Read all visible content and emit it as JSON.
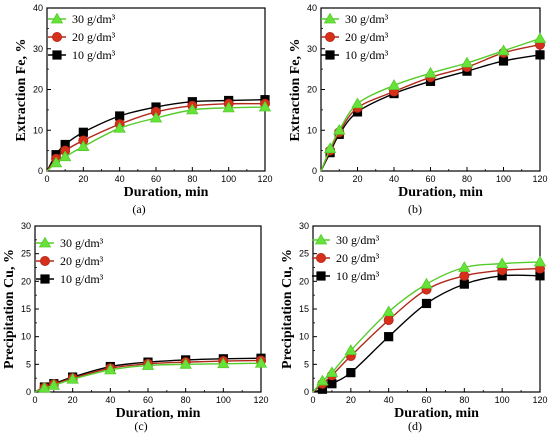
{
  "colors": {
    "green": "#66e23a",
    "red": "#d62f1a",
    "black": "#000000",
    "green_line": "#55cc2a",
    "red_line": "#b2281a"
  },
  "legend_labels": [
    "30 g/dm³",
    "20 g/dm³",
    "10 g/dm³"
  ],
  "chart_data": [
    {
      "type": "line",
      "panel_label": "(a)",
      "xlabel": "Duration,  min",
      "ylabel": "Extraction Fe,  %",
      "xlim": [
        0,
        120
      ],
      "ylim": [
        0,
        40
      ],
      "xticks": [
        0,
        20,
        40,
        60,
        80,
        100,
        120
      ],
      "yticks": [
        0,
        10,
        20,
        30,
        40
      ],
      "legend_position": "top-left",
      "x": [
        0,
        5,
        10,
        20,
        40,
        60,
        80,
        100,
        120
      ],
      "series": [
        {
          "name": "30 g/dm³",
          "marker": "triangle",
          "values": [
            0,
            2,
            3.5,
            6,
            10.5,
            13,
            15,
            15.5,
            15.7
          ]
        },
        {
          "name": "20 g/dm³",
          "marker": "circle",
          "values": [
            0,
            3,
            5,
            7.5,
            11.5,
            14.5,
            16,
            16.5,
            16.5
          ]
        },
        {
          "name": "10 g/dm³",
          "marker": "square",
          "values": [
            0,
            4,
            6.5,
            9.5,
            13.5,
            15.7,
            17,
            17.3,
            17.5
          ]
        }
      ]
    },
    {
      "type": "line",
      "panel_label": "(b)",
      "xlabel": "Duration,  min",
      "ylabel": "Extraction Fe,  %",
      "xlim": [
        0,
        120
      ],
      "ylim": [
        0,
        40
      ],
      "xticks": [
        0,
        20,
        40,
        60,
        80,
        100,
        120
      ],
      "yticks": [
        0,
        10,
        20,
        30,
        40
      ],
      "legend_position": "top-left",
      "x": [
        0,
        5,
        10,
        20,
        40,
        60,
        80,
        100,
        120
      ],
      "series": [
        {
          "name": "30 g/dm³",
          "marker": "triangle",
          "values": [
            0,
            5.5,
            10,
            16.5,
            21,
            24,
            26.5,
            29.5,
            32.5
          ]
        },
        {
          "name": "20 g/dm³",
          "marker": "circle",
          "values": [
            0,
            5,
            9.5,
            15.5,
            19.5,
            23,
            25.5,
            29,
            31
          ]
        },
        {
          "name": "10 g/dm³",
          "marker": "square",
          "values": [
            0,
            4.5,
            9,
            14.5,
            19,
            22,
            24.5,
            27,
            28.5
          ]
        }
      ]
    },
    {
      "type": "line",
      "panel_label": "(c)",
      "xlabel": "Duration,  min",
      "ylabel": "Precipitation Cu,  %",
      "xlim": [
        0,
        120
      ],
      "ylim": [
        0,
        30
      ],
      "xticks": [
        0,
        20,
        40,
        60,
        80,
        100,
        120
      ],
      "yticks": [
        0,
        5,
        10,
        15,
        20,
        25,
        30
      ],
      "legend_position": "top-left",
      "x": [
        0,
        5,
        10,
        20,
        40,
        60,
        80,
        100,
        120
      ],
      "series": [
        {
          "name": "30 g/dm³",
          "marker": "triangle",
          "values": [
            0,
            0.7,
            1.2,
            2.3,
            4,
            4.8,
            5,
            5.1,
            5.2
          ]
        },
        {
          "name": "20 g/dm³",
          "marker": "circle",
          "values": [
            0,
            0.8,
            1.4,
            2.5,
            4.3,
            5.1,
            5.4,
            5.6,
            5.7
          ]
        },
        {
          "name": "10 g/dm³",
          "marker": "square",
          "values": [
            0,
            0.9,
            1.5,
            2.7,
            4.6,
            5.4,
            5.8,
            6.0,
            6.1
          ]
        }
      ]
    },
    {
      "type": "line",
      "panel_label": "(d)",
      "xlabel": "Duration,  min",
      "ylabel": "Precipitation Cu,  %",
      "xlim": [
        0,
        120
      ],
      "ylim": [
        0,
        30
      ],
      "xticks": [
        0,
        20,
        40,
        60,
        80,
        100,
        120
      ],
      "yticks": [
        0,
        5,
        10,
        15,
        20,
        25,
        30
      ],
      "legend_position": "top-left",
      "x": [
        0,
        5,
        10,
        20,
        40,
        60,
        80,
        100,
        120
      ],
      "series": [
        {
          "name": "30 g/dm³",
          "marker": "triangle",
          "values": [
            0,
            2,
            3.5,
            7.5,
            14.5,
            19.5,
            22.5,
            23.2,
            23.5
          ]
        },
        {
          "name": "20 g/dm³",
          "marker": "circle",
          "values": [
            0,
            1.5,
            3,
            6.5,
            13,
            18.5,
            21,
            22,
            22.3
          ]
        },
        {
          "name": "10 g/dm³",
          "marker": "square",
          "values": [
            0,
            0.5,
            1.5,
            3.5,
            10,
            16,
            19.5,
            21,
            21
          ]
        }
      ]
    }
  ]
}
